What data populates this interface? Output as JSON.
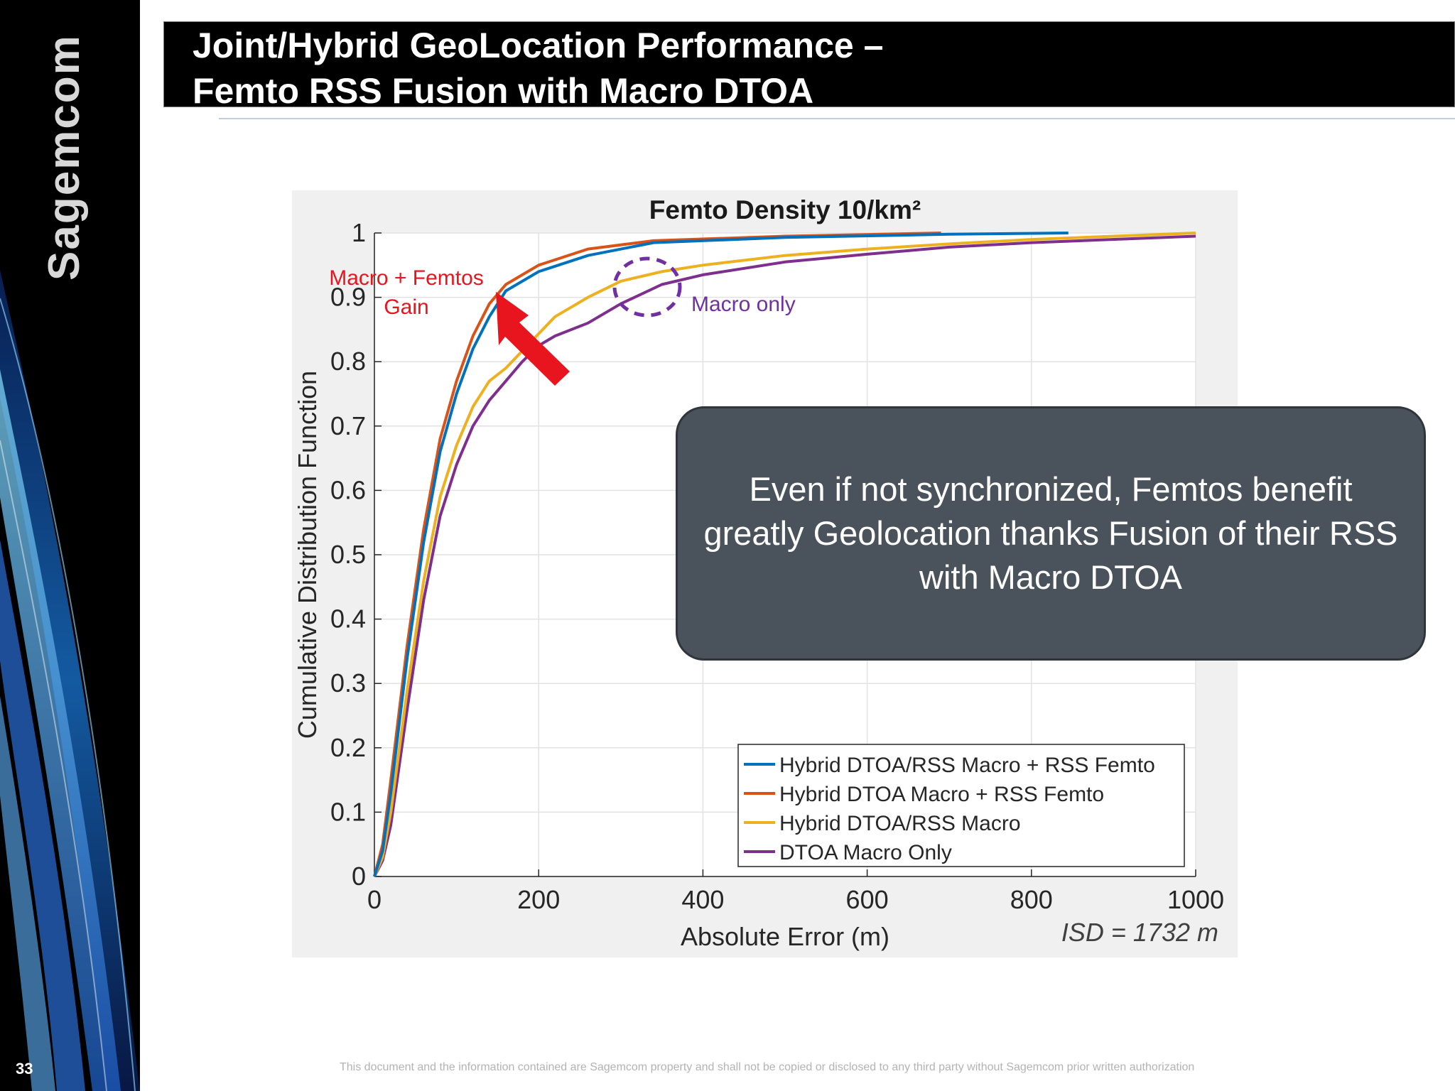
{
  "slide": {
    "page_number": "33",
    "brand": "Sagemcom",
    "title_line1": "Joint/Hybrid GeoLocation Performance –",
    "title_line2": "Femto RSS Fusion with Macro DTOA",
    "callout": "Even if not synchronized, Femtos benefit greatly Geolocation thanks Fusion of their RSS with Macro DTOA",
    "footer": "This document and the information contained are Sagemcom property and shall not be copied or disclosed to any third party without Sagemcom prior written authorization"
  },
  "colors": {
    "title_bg": "#000000",
    "callout_bg": "#4a525b",
    "annotation_red": "#e8141e",
    "annotation_purple": "#7030a0"
  },
  "chart_data": {
    "type": "line",
    "title": "Femto Density 10/km²",
    "xlabel": "Absolute Error (m)",
    "ylabel": "Cumulative Distribution Function",
    "xlim": [
      0,
      1000
    ],
    "ylim": [
      0,
      1
    ],
    "xticks": [
      0,
      200,
      400,
      600,
      800,
      1000
    ],
    "yticks": [
      0,
      0.1,
      0.2,
      0.3,
      0.4,
      0.5,
      0.6,
      0.7,
      0.8,
      0.9,
      1
    ],
    "grid": true,
    "legend_position": "bottom-right",
    "series": [
      {
        "name": "Hybrid DTOA/RSS Macro + RSS Femto",
        "color": "#0072bd",
        "x": [
          0,
          10,
          20,
          40,
          60,
          80,
          100,
          120,
          140,
          160,
          200,
          260,
          340,
          500,
          700,
          845
        ],
        "y": [
          0,
          0.04,
          0.13,
          0.34,
          0.52,
          0.66,
          0.75,
          0.82,
          0.87,
          0.91,
          0.94,
          0.965,
          0.985,
          0.993,
          0.998,
          1.0
        ]
      },
      {
        "name": "Hybrid DTOA Macro + RSS Femto",
        "color": "#d95319",
        "x": [
          0,
          10,
          20,
          40,
          60,
          80,
          100,
          120,
          140,
          160,
          200,
          260,
          340,
          500,
          690
        ],
        "y": [
          0,
          0.05,
          0.15,
          0.36,
          0.54,
          0.68,
          0.77,
          0.84,
          0.89,
          0.92,
          0.95,
          0.975,
          0.988,
          0.995,
          1.0
        ]
      },
      {
        "name": "Hybrid DTOA/RSS Macro",
        "color": "#edb120",
        "x": [
          0,
          10,
          20,
          40,
          60,
          80,
          100,
          120,
          140,
          160,
          190,
          220,
          260,
          300,
          350,
          400,
          500,
          600,
          700,
          800,
          1000
        ],
        "y": [
          0,
          0.03,
          0.1,
          0.29,
          0.46,
          0.59,
          0.67,
          0.73,
          0.77,
          0.79,
          0.83,
          0.87,
          0.9,
          0.925,
          0.94,
          0.95,
          0.965,
          0.975,
          0.983,
          0.99,
          1.0
        ]
      },
      {
        "name": "DTOA Macro Only",
        "color": "#7e2f8e",
        "x": [
          0,
          10,
          20,
          40,
          60,
          80,
          100,
          120,
          140,
          160,
          180,
          200,
          220,
          260,
          300,
          350,
          400,
          500,
          600,
          700,
          800,
          1000
        ],
        "y": [
          0,
          0.025,
          0.08,
          0.26,
          0.43,
          0.56,
          0.64,
          0.7,
          0.74,
          0.77,
          0.8,
          0.825,
          0.84,
          0.86,
          0.89,
          0.92,
          0.935,
          0.955,
          0.967,
          0.978,
          0.985,
          0.995
        ]
      }
    ],
    "annotations": {
      "gain_line1": "Macro + Femtos",
      "gain_line2": "Gain",
      "macro_only": "Macro only",
      "isd": "ISD = 1732 m"
    }
  }
}
